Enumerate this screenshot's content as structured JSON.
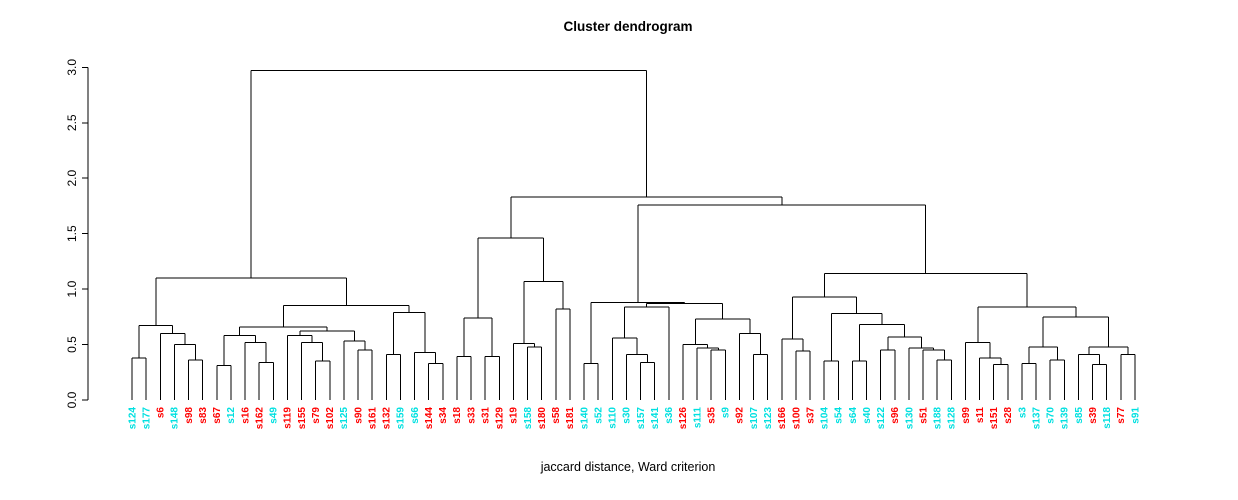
{
  "title": "Cluster dendrogram",
  "xlabel": "jaccard distance, Ward criterion",
  "colors": {
    "red": "#FF0000",
    "cyan": "#00E0E0",
    "line": "#000000"
  },
  "y_axis": {
    "ticks": [
      "0.0",
      "0.5",
      "1.0",
      "1.5",
      "2.0",
      "2.5",
      "3.0"
    ],
    "min": 0,
    "max": 3
  },
  "chart_data": {
    "type": "dendrogram",
    "title": "Cluster dendrogram",
    "xlabel": "jaccard distance, Ward criterion",
    "ylabel": "",
    "ylim": [
      0,
      3
    ],
    "legend": "none",
    "leaves": [
      {
        "label": "s124",
        "color": "cyan"
      },
      {
        "label": "s177",
        "color": "cyan"
      },
      {
        "label": "s6",
        "color": "red"
      },
      {
        "label": "s148",
        "color": "cyan"
      },
      {
        "label": "s98",
        "color": "red"
      },
      {
        "label": "s83",
        "color": "red"
      },
      {
        "label": "s67",
        "color": "red"
      },
      {
        "label": "s12",
        "color": "cyan"
      },
      {
        "label": "s16",
        "color": "red"
      },
      {
        "label": "s162",
        "color": "red"
      },
      {
        "label": "s49",
        "color": "cyan"
      },
      {
        "label": "s119",
        "color": "red"
      },
      {
        "label": "s155",
        "color": "red"
      },
      {
        "label": "s79",
        "color": "red"
      },
      {
        "label": "s102",
        "color": "red"
      },
      {
        "label": "s125",
        "color": "cyan"
      },
      {
        "label": "s90",
        "color": "red"
      },
      {
        "label": "s161",
        "color": "red"
      },
      {
        "label": "s132",
        "color": "red"
      },
      {
        "label": "s159",
        "color": "cyan"
      },
      {
        "label": "s66",
        "color": "cyan"
      },
      {
        "label": "s144",
        "color": "red"
      },
      {
        "label": "s34",
        "color": "red"
      },
      {
        "label": "s18",
        "color": "red"
      },
      {
        "label": "s33",
        "color": "red"
      },
      {
        "label": "s31",
        "color": "red"
      },
      {
        "label": "s129",
        "color": "red"
      },
      {
        "label": "s19",
        "color": "red"
      },
      {
        "label": "s158",
        "color": "cyan"
      },
      {
        "label": "s180",
        "color": "red"
      },
      {
        "label": "s58",
        "color": "red"
      },
      {
        "label": "s181",
        "color": "red"
      },
      {
        "label": "s140",
        "color": "cyan"
      },
      {
        "label": "s52",
        "color": "cyan"
      },
      {
        "label": "s110",
        "color": "cyan"
      },
      {
        "label": "s30",
        "color": "cyan"
      },
      {
        "label": "s157",
        "color": "cyan"
      },
      {
        "label": "s141",
        "color": "cyan"
      },
      {
        "label": "s36",
        "color": "cyan"
      },
      {
        "label": "s126",
        "color": "red"
      },
      {
        "label": "s111",
        "color": "cyan"
      },
      {
        "label": "s35",
        "color": "red"
      },
      {
        "label": "s9",
        "color": "cyan"
      },
      {
        "label": "s92",
        "color": "red"
      },
      {
        "label": "s107",
        "color": "cyan"
      },
      {
        "label": "s123",
        "color": "cyan"
      },
      {
        "label": "s166",
        "color": "red"
      },
      {
        "label": "s100",
        "color": "red"
      },
      {
        "label": "s37",
        "color": "red"
      },
      {
        "label": "s104",
        "color": "cyan"
      },
      {
        "label": "s54",
        "color": "cyan"
      },
      {
        "label": "s64",
        "color": "cyan"
      },
      {
        "label": "s40",
        "color": "cyan"
      },
      {
        "label": "s122",
        "color": "cyan"
      },
      {
        "label": "s96",
        "color": "red"
      },
      {
        "label": "s130",
        "color": "cyan"
      },
      {
        "label": "s51",
        "color": "red"
      },
      {
        "label": "s188",
        "color": "cyan"
      },
      {
        "label": "s128",
        "color": "cyan"
      },
      {
        "label": "s99",
        "color": "red"
      },
      {
        "label": "s11",
        "color": "red"
      },
      {
        "label": "s151",
        "color": "red"
      },
      {
        "label": "s28",
        "color": "red"
      },
      {
        "label": "s3",
        "color": "cyan"
      },
      {
        "label": "s137",
        "color": "cyan"
      },
      {
        "label": "s70",
        "color": "cyan"
      },
      {
        "label": "s139",
        "color": "cyan"
      },
      {
        "label": "s85",
        "color": "cyan"
      },
      {
        "label": "s39",
        "color": "red"
      },
      {
        "label": "s118",
        "color": "cyan"
      },
      {
        "label": "s77",
        "color": "red"
      },
      {
        "label": "s91",
        "color": "cyan"
      }
    ],
    "tree": {
      "h": 2.97,
      "c": [
        {
          "h": 1.1,
          "c": [
            {
              "h": 0.67,
              "c": [
                {
                  "h": 0.38,
                  "c": [
                    0,
                    1
                  ]
                },
                {
                  "h": 0.6,
                  "c": [
                    2,
                    {
                      "h": 0.5,
                      "c": [
                        3,
                        {
                          "h": 0.36,
                          "c": [
                            4,
                            5
                          ]
                        }
                      ]
                    }
                  ]
                }
              ]
            },
            {
              "h": 0.85,
              "c": [
                {
                  "h": 0.66,
                  "c": [
                    {
                      "h": 0.58,
                      "c": [
                        {
                          "h": 0.31,
                          "c": [
                            6,
                            7
                          ]
                        },
                        {
                          "h": 0.52,
                          "c": [
                            8,
                            {
                              "h": 0.34,
                              "c": [
                                9,
                                10
                              ]
                            }
                          ]
                        }
                      ]
                    },
                    {
                      "h": 0.62,
                      "c": [
                        {
                          "h": 0.58,
                          "c": [
                            11,
                            {
                              "h": 0.52,
                              "c": [
                                12,
                                {
                                  "h": 0.35,
                                  "c": [
                                    13,
                                    14
                                  ]
                                }
                              ]
                            }
                          ]
                        },
                        {
                          "h": 0.53,
                          "c": [
                            15,
                            {
                              "h": 0.45,
                              "c": [
                                16,
                                17
                              ]
                            }
                          ]
                        }
                      ]
                    }
                  ]
                },
                {
                  "h": 0.79,
                  "c": [
                    {
                      "h": 0.41,
                      "c": [
                        18,
                        19
                      ]
                    },
                    {
                      "h": 0.43,
                      "c": [
                        20,
                        {
                          "h": 0.33,
                          "c": [
                            21,
                            22
                          ]
                        }
                      ]
                    }
                  ]
                }
              ]
            }
          ]
        },
        {
          "h": 1.83,
          "c": [
            {
              "h": 1.46,
              "c": [
                {
                  "h": 0.74,
                  "c": [
                    {
                      "h": 0.39,
                      "c": [
                        23,
                        24
                      ]
                    },
                    {
                      "h": 0.39,
                      "c": [
                        25,
                        26
                      ]
                    }
                  ]
                },
                {
                  "h": 1.07,
                  "c": [
                    {
                      "h": 0.51,
                      "c": [
                        27,
                        {
                          "h": 0.48,
                          "c": [
                            28,
                            29
                          ]
                        }
                      ]
                    },
                    {
                      "h": 0.82,
                      "c": [
                        30,
                        31
                      ]
                    }
                  ]
                }
              ]
            },
            {
              "h": 1.76,
              "c": [
                {
                  "h": 0.88,
                  "c": [
                    {
                      "h": 0.33,
                      "c": [
                        32,
                        33
                      ]
                    },
                    {
                      "h": 0.87,
                      "c": [
                        {
                          "h": 0.84,
                          "c": [
                            {
                              "h": 0.56,
                              "c": [
                                34,
                                {
                                  "h": 0.41,
                                  "c": [
                                    35,
                                    {
                                      "h": 0.34,
                                      "c": [
                                        36,
                                        37
                                      ]
                                    }
                                  ]
                                }
                              ]
                            },
                            38
                          ]
                        },
                        {
                          "h": 0.73,
                          "c": [
                            {
                              "h": 0.5,
                              "c": [
                                39,
                                {
                                  "h": 0.47,
                                  "c": [
                                    40,
                                    {
                                      "h": 0.45,
                                      "c": [
                                        41,
                                        42
                                      ]
                                    }
                                  ]
                                }
                              ]
                            },
                            {
                              "h": 0.6,
                              "c": [
                                43,
                                {
                                  "h": 0.41,
                                  "c": [
                                    44,
                                    45
                                  ]
                                }
                              ]
                            }
                          ]
                        }
                      ]
                    }
                  ]
                },
                {
                  "h": 1.14,
                  "c": [
                    {
                      "h": 0.93,
                      "c": [
                        {
                          "h": 0.55,
                          "c": [
                            46,
                            {
                              "h": 0.44,
                              "c": [
                                47,
                                48
                              ]
                            }
                          ]
                        },
                        {
                          "h": 0.78,
                          "c": [
                            {
                              "h": 0.35,
                              "c": [
                                49,
                                50
                              ]
                            },
                            {
                              "h": 0.68,
                              "c": [
                                {
                                  "h": 0.35,
                                  "c": [
                                    51,
                                    52
                                  ]
                                },
                                {
                                  "h": 0.57,
                                  "c": [
                                    {
                                      "h": 0.45,
                                      "c": [
                                        53,
                                        54
                                      ]
                                    },
                                    {
                                      "h": 0.47,
                                      "c": [
                                        55,
                                        {
                                          "h": 0.45,
                                          "c": [
                                            56,
                                            {
                                              "h": 0.36,
                                              "c": [
                                                57,
                                                58
                                              ]
                                            }
                                          ]
                                        }
                                      ]
                                    }
                                  ]
                                }
                              ]
                            }
                          ]
                        }
                      ]
                    },
                    {
                      "h": 0.84,
                      "c": [
                        {
                          "h": 0.52,
                          "c": [
                            59,
                            {
                              "h": 0.38,
                              "c": [
                                60,
                                {
                                  "h": 0.32,
                                  "c": [
                                    61,
                                    62
                                  ]
                                }
                              ]
                            }
                          ]
                        },
                        {
                          "h": 0.75,
                          "c": [
                            {
                              "h": 0.48,
                              "c": [
                                {
                                  "h": 0.33,
                                  "c": [
                                    63,
                                    64
                                  ]
                                },
                                {
                                  "h": 0.36,
                                  "c": [
                                    65,
                                    66
                                  ]
                                }
                              ]
                            },
                            {
                              "h": 0.48,
                              "c": [
                                {
                                  "h": 0.41,
                                  "c": [
                                    67,
                                    {
                                      "h": 0.32,
                                      "c": [
                                        68,
                                        69
                                      ]
                                    }
                                  ]
                                },
                                {
                                  "h": 0.41,
                                  "c": [
                                    70,
                                    71
                                  ]
                                }
                              ]
                            }
                          ]
                        }
                      ]
                    }
                  ]
                }
              ]
            }
          ]
        }
      ]
    }
  }
}
